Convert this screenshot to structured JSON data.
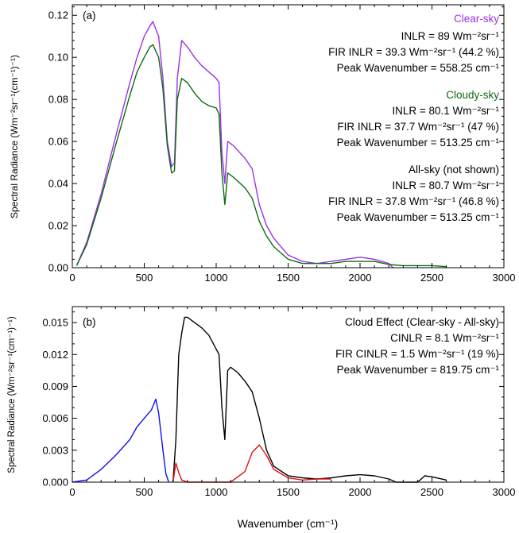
{
  "colors": {
    "clear": "#9b30e8",
    "cloudy": "#0e6b12",
    "black": "#000000",
    "blue": "#1010f0",
    "red": "#e01010"
  },
  "chart_data": [
    {
      "type": "line",
      "panel": "(a)",
      "title": "",
      "xlabel": "",
      "ylabel": "Spectral Radiance (Wm⁻²sr⁻¹(cm⁻¹)⁻¹)",
      "xlim": [
        0,
        3000
      ],
      "ylim": [
        0,
        0.125
      ],
      "xticks": [
        "0",
        "500",
        "1000",
        "1500",
        "2000",
        "2500",
        "3000"
      ],
      "yticks": [
        "0.00",
        "0.02",
        "0.04",
        "0.06",
        "0.08",
        "0.10",
        "0.12"
      ],
      "series": [
        {
          "name": "Clear-sky",
          "x": [
            30,
            100,
            200,
            300,
            400,
            450,
            500,
            540,
            560,
            600,
            630,
            660,
            690,
            710,
            730,
            760,
            800,
            850,
            900,
            950,
            1000,
            1020,
            1040,
            1060,
            1080,
            1120,
            1200,
            1250,
            1300,
            1350,
            1400,
            1500,
            1600,
            1700,
            1800,
            1900,
            2000,
            2100,
            2200,
            2230
          ],
          "y": [
            0.001,
            0.012,
            0.035,
            0.062,
            0.088,
            0.1,
            0.11,
            0.115,
            0.117,
            0.11,
            0.09,
            0.06,
            0.048,
            0.05,
            0.09,
            0.108,
            0.105,
            0.1,
            0.096,
            0.093,
            0.09,
            0.088,
            0.055,
            0.04,
            0.06,
            0.058,
            0.052,
            0.047,
            0.03,
            0.02,
            0.014,
            0.006,
            0.003,
            0.002,
            0.003,
            0.004,
            0.005,
            0.004,
            0.002,
            0.0
          ]
        },
        {
          "name": "Cloudy-sky",
          "x": [
            30,
            100,
            200,
            300,
            400,
            450,
            500,
            540,
            560,
            600,
            630,
            660,
            690,
            710,
            730,
            760,
            800,
            850,
            900,
            950,
            1000,
            1020,
            1040,
            1060,
            1080,
            1120,
            1200,
            1250,
            1300,
            1350,
            1400,
            1500,
            1600,
            1700,
            1800,
            1900,
            2000,
            2100,
            2200,
            2300,
            2400,
            2500,
            2600
          ],
          "y": [
            0.001,
            0.011,
            0.033,
            0.058,
            0.082,
            0.093,
            0.1,
            0.105,
            0.106,
            0.1,
            0.085,
            0.058,
            0.045,
            0.046,
            0.08,
            0.09,
            0.088,
            0.083,
            0.079,
            0.077,
            0.076,
            0.073,
            0.045,
            0.03,
            0.045,
            0.043,
            0.038,
            0.033,
            0.022,
            0.015,
            0.01,
            0.004,
            0.002,
            0.002,
            0.002,
            0.003,
            0.003,
            0.003,
            0.0015,
            0.001,
            0.001,
            0.001,
            0.0005
          ]
        }
      ],
      "annotations": {
        "clear_title": "Clear-sky",
        "clear_inlr": "INLR = 89 Wm⁻²sr⁻¹",
        "clear_fir": "FIR INLR = 39.3 Wm⁻²sr⁻¹ (44.2 %)",
        "clear_peak": "Peak Wavenumber = 558.25 cm⁻¹",
        "cloudy_title": "Cloudy-sky",
        "cloudy_inlr": "INLR = 80.1 Wm⁻²sr⁻¹",
        "cloudy_fir": "FIR INLR = 37.7 Wm⁻²sr⁻¹ (47 %)",
        "cloudy_peak": "Peak Wavenumber = 513.25 cm⁻¹",
        "all_title": "All-sky (not shown)",
        "all_inlr": "INLR = 80.7 Wm⁻²sr⁻¹",
        "all_fir": "FIR INLR = 37.8 Wm⁻²sr⁻¹ (46.8 %)",
        "all_peak": "Peak Wavenumber = 513.25 cm⁻¹"
      }
    },
    {
      "type": "line",
      "panel": "(b)",
      "title": "",
      "xlabel": "Wavenumber (cm⁻¹)",
      "ylabel": "Spectral Radiance (Wm⁻²sr⁻¹(cm⁻¹)⁻¹)",
      "xlim": [
        0,
        3000
      ],
      "ylim": [
        0,
        0.0165
      ],
      "xticks": [
        "0",
        "500",
        "1000",
        "1500",
        "2000",
        "2500",
        "3000"
      ],
      "yticks": [
        "0.000",
        "0.003",
        "0.006",
        "0.009",
        "0.012",
        "0.015"
      ],
      "series": [
        {
          "x": [
            700,
            720,
            740,
            760,
            780,
            800,
            850,
            900,
            950,
            1000,
            1020,
            1040,
            1060,
            1080,
            1100,
            1150,
            1200,
            1250,
            1300,
            1350,
            1400,
            1500,
            1600,
            1700,
            1800,
            1900,
            2000,
            2100,
            2200,
            2250,
            2400,
            2450,
            2500,
            2600
          ],
          "y": [
            0.0,
            0.004,
            0.012,
            0.014,
            0.0155,
            0.0155,
            0.015,
            0.0145,
            0.0138,
            0.0125,
            0.012,
            0.007,
            0.004,
            0.0105,
            0.0108,
            0.0103,
            0.0095,
            0.0085,
            0.006,
            0.003,
            0.0015,
            0.0006,
            0.0004,
            0.0003,
            0.0004,
            0.0006,
            0.0007,
            0.0006,
            0.0003,
            0.0,
            0.0,
            0.0006,
            0.0005,
            0.0002
          ]
        },
        {
          "x": [
            0,
            100,
            200,
            300,
            400,
            450,
            500,
            550,
            580,
            600,
            630,
            650,
            670
          ],
          "y": [
            0.0,
            0.0002,
            0.0012,
            0.0025,
            0.004,
            0.0052,
            0.006,
            0.0068,
            0.0078,
            0.0065,
            0.003,
            0.0008,
            0.0
          ]
        },
        {
          "x": [
            700,
            720,
            740,
            760,
            800,
            900,
            1000,
            1100,
            1200,
            1250,
            1300,
            1350,
            1400,
            1500,
            1600,
            1700,
            1800
          ],
          "y": [
            0.0,
            0.0018,
            0.0009,
            0.0002,
            0.0,
            0.0,
            0.0,
            0.0,
            0.001,
            0.0028,
            0.0035,
            0.0025,
            0.0012,
            0.0004,
            0.0002,
            0.0003,
            0.0003
          ]
        }
      ],
      "annotations": {
        "title": "Cloud Effect (Clear-sky - All-sky)",
        "cinlr": "CINLR = 8.1 Wm⁻²sr⁻¹",
        "fir": "FIR CINLR = 1.5 Wm⁻²sr⁻¹ (19 %)",
        "peak": "Peak Wavenumber = 819.75 cm⁻¹"
      }
    }
  ]
}
